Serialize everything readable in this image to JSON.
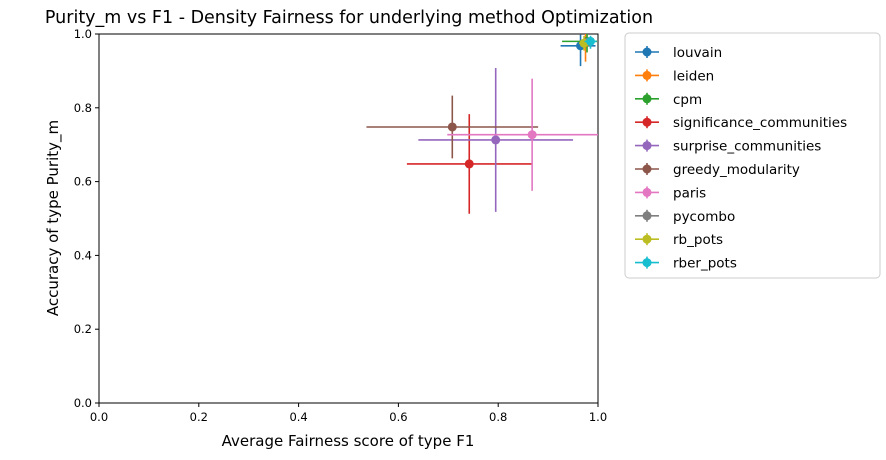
{
  "chart_data": {
    "type": "scatter",
    "title": "Purity_m vs F1 - Density Fairness for underlying method Optimization",
    "xlabel": "Average Fairness score of type F1",
    "ylabel": "Accuracy of type Purity_m",
    "xlim": [
      0.0,
      1.0
    ],
    "ylim": [
      0.0,
      1.0
    ],
    "xticks": [
      "0.0",
      "0.2",
      "0.4",
      "0.6",
      "0.8",
      "1.0"
    ],
    "yticks": [
      "0.0",
      "0.2",
      "0.4",
      "0.6",
      "0.8",
      "1.0"
    ],
    "grid": false,
    "legend_position": "outside-right",
    "series": [
      {
        "name": "louvain",
        "color": "#1f77b4",
        "x": 0.965,
        "y": 0.968,
        "xerr": [
          0.04,
          0.03
        ],
        "yerr": [
          0.055,
          0.03
        ]
      },
      {
        "name": "leiden",
        "color": "#ff7f0e",
        "x": 0.975,
        "y": 0.975,
        "xerr": [
          0.01,
          0.01
        ],
        "yerr": [
          0.05,
          0.025
        ]
      },
      {
        "name": "cpm",
        "color": "#2ca02c",
        "x": 0.978,
        "y": 0.98,
        "xerr": [
          0.05,
          0.02
        ],
        "yerr": [
          0.03,
          0.02
        ]
      },
      {
        "name": "significance_communities",
        "color": "#d62728",
        "x": 0.742,
        "y": 0.648,
        "xerr": [
          0.125,
          0.125
        ],
        "yerr": [
          0.135,
          0.135
        ]
      },
      {
        "name": "surprise_communities",
        "color": "#9467bd",
        "x": 0.795,
        "y": 0.713,
        "xerr": [
          0.155,
          0.155
        ],
        "yerr": [
          0.195,
          0.195
        ]
      },
      {
        "name": "greedy_modularity",
        "color": "#8c564b",
        "x": 0.708,
        "y": 0.748,
        "xerr": [
          0.172,
          0.172
        ],
        "yerr": [
          0.085,
          0.085
        ]
      },
      {
        "name": "paris",
        "color": "#e377c2",
        "x": 0.868,
        "y": 0.727,
        "xerr": [
          0.17,
          0.17
        ],
        "yerr": [
          0.152,
          0.152
        ]
      },
      {
        "name": "pycombo",
        "color": "#7f7f7f",
        "x": 0.978,
        "y": 0.978,
        "xerr": [
          0.008,
          0.008
        ],
        "yerr": [
          0.01,
          0.01
        ]
      },
      {
        "name": "rb_pots",
        "color": "#bcbd22",
        "x": 0.972,
        "y": 0.975,
        "xerr": [
          0.01,
          0.01
        ],
        "yerr": [
          0.02,
          0.02
        ]
      },
      {
        "name": "rber_pots",
        "color": "#17becf",
        "x": 0.985,
        "y": 0.98,
        "xerr": [
          0.012,
          0.012
        ],
        "yerr": [
          0.02,
          0.015
        ]
      }
    ]
  }
}
